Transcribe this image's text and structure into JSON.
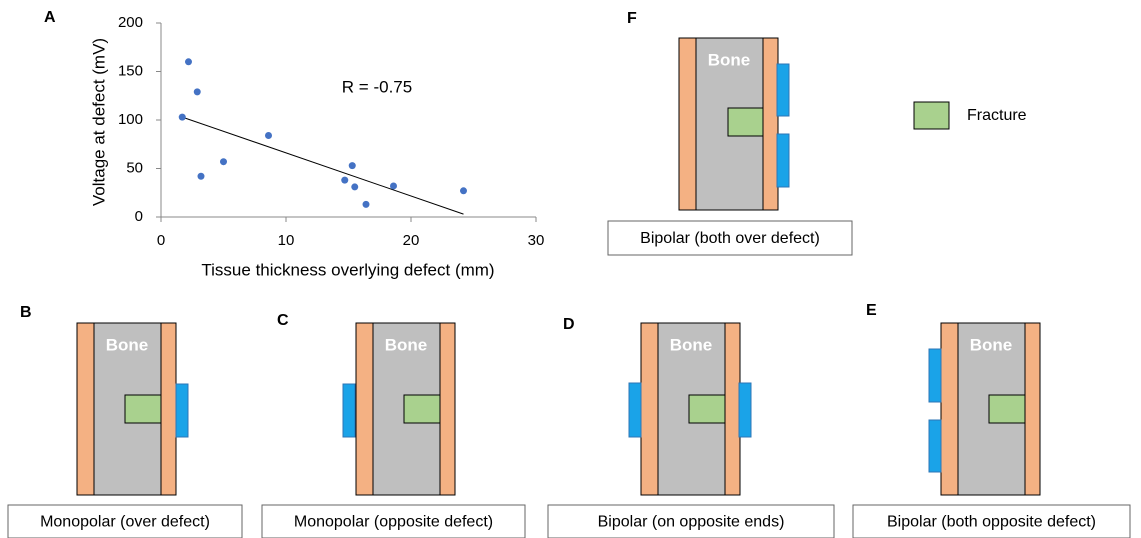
{
  "chart_data": {
    "type": "scatter",
    "panel_label": "A",
    "x_label": "Tissue thickness overlying defect (mm)",
    "y_label": "Voltage at defect (mV)",
    "annotation": "R = -0.75",
    "x": [
      2.2,
      2.9,
      1.7,
      3.2,
      5.0,
      8.6,
      15.3,
      14.7,
      15.5,
      16.4,
      18.6,
      24.2
    ],
    "values": [
      160,
      129,
      103,
      42,
      57,
      84,
      53,
      38,
      31,
      13,
      32,
      27
    ],
    "color": "#4472c4",
    "trendline": {
      "x": [
        1.7,
        24.2
      ],
      "y": [
        103,
        3
      ]
    },
    "xlim": [
      0,
      30
    ],
    "ylim": [
      0,
      200
    ],
    "xticks": [
      0,
      10,
      20,
      30
    ],
    "yticks": [
      0,
      50,
      100,
      150,
      200
    ]
  },
  "panels": [
    {
      "label": "B",
      "bone_label": "Bone",
      "caption": "Monopolar (over defect)"
    },
    {
      "label": "C",
      "bone_label": "Bone",
      "caption": "Monopolar (opposite defect)"
    },
    {
      "label": "D",
      "bone_label": "Bone",
      "caption": "Bipolar (on opposite ends)"
    },
    {
      "label": "E",
      "bone_label": "Bone",
      "caption": "Bipolar (both opposite defect)"
    },
    {
      "label": "F",
      "bone_label": "Bone",
      "caption": "Bipolar (both over defect)"
    }
  ],
  "legend": {
    "label": "Fracture"
  }
}
